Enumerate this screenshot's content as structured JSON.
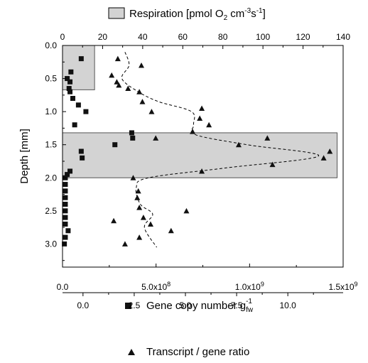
{
  "chart_data": {
    "type": "scatter",
    "legend": {
      "respiration_label": "Respiration [pmol O",
      "respiration_sub": "2",
      "respiration_unit_a": " cm",
      "respiration_sup_a": "-3",
      "respiration_unit_b": "s",
      "respiration_sup_b": "-1",
      "respiration_close": "]"
    },
    "ylabel": "Depth [mm]",
    "ylim": [
      3.35,
      0.0
    ],
    "y_ticks": [
      "0.0",
      "0.5",
      "1.0",
      "1.5",
      "2.0",
      "2.5",
      "3.0"
    ],
    "x_bottom": {
      "label": "Gene copy number g",
      "label_sub": "fw",
      "label_sup": "-1",
      "range": [
        0,
        1500000000
      ],
      "ticks": [
        {
          "value": 0,
          "label": "0.0"
        },
        {
          "value": 500000000,
          "label": "5.0x10"
        },
        {
          "value": 1000000000,
          "label": "1.0x10"
        },
        {
          "value": 1500000000,
          "label": "1.5x10"
        }
      ],
      "tick_exponents": [
        "",
        "8",
        "9",
        "9"
      ]
    },
    "x_top": {
      "range": [
        0,
        140
      ],
      "ticks": [
        "0",
        "20",
        "40",
        "60",
        "80",
        "100",
        "120",
        "140"
      ]
    },
    "x_ratio": {
      "label": "Transcript / gene ratio",
      "range": [
        -1.0,
        12.7
      ],
      "ticks": [
        "0.0",
        "2.5",
        "5.0",
        "7.5",
        "10.0"
      ],
      "tick_values": [
        0,
        2.5,
        5.0,
        7.5,
        10.0
      ]
    },
    "respiration_bars": [
      {
        "depth_from": 0.0,
        "depth_to": 0.67,
        "value": 16
      },
      {
        "depth_from": 1.32,
        "depth_to": 2.0,
        "value": 137
      }
    ],
    "gene_copy_series": {
      "name": "Gene copy number",
      "points": [
        [
          100000000,
          0.2
        ],
        [
          45000000,
          0.4
        ],
        [
          25000000,
          0.5
        ],
        [
          40000000,
          0.55
        ],
        [
          35000000,
          0.65
        ],
        [
          40000000,
          0.7
        ],
        [
          55000000,
          0.8
        ],
        [
          85000000,
          0.9
        ],
        [
          125000000,
          1.0
        ],
        [
          65000000,
          1.2
        ],
        [
          370000000,
          1.32
        ],
        [
          375000000,
          1.4
        ],
        [
          280000000,
          1.5
        ],
        [
          100000000,
          1.6
        ],
        [
          105000000,
          1.7
        ],
        [
          40000000,
          1.9
        ],
        [
          25000000,
          1.95
        ],
        [
          15000000,
          2.0
        ],
        [
          15000000,
          2.1
        ],
        [
          15000000,
          2.2
        ],
        [
          15000000,
          2.3
        ],
        [
          15000000,
          2.4
        ],
        [
          15000000,
          2.5
        ],
        [
          15000000,
          2.6
        ],
        [
          15000000,
          2.7
        ],
        [
          30000000,
          2.8
        ],
        [
          15000000,
          2.9
        ],
        [
          10000000,
          3.0
        ]
      ]
    },
    "ratio_series": {
      "name": "Transcript / gene ratio",
      "points": [
        [
          1.7,
          0.2
        ],
        [
          2.85,
          0.3
        ],
        [
          1.4,
          0.45
        ],
        [
          1.65,
          0.55
        ],
        [
          1.75,
          0.6
        ],
        [
          2.2,
          0.65
        ],
        [
          2.75,
          0.7
        ],
        [
          2.9,
          0.85
        ],
        [
          3.35,
          1.0
        ],
        [
          5.8,
          0.95
        ],
        [
          5.7,
          1.1
        ],
        [
          6.15,
          1.2
        ],
        [
          5.35,
          1.3
        ],
        [
          3.55,
          1.4
        ],
        [
          7.6,
          1.5
        ],
        [
          9.0,
          1.4
        ],
        [
          9.25,
          1.8
        ],
        [
          5.8,
          1.9
        ],
        [
          12.05,
          1.6
        ],
        [
          11.75,
          1.7
        ],
        [
          2.45,
          2.0
        ],
        [
          2.7,
          2.2
        ],
        [
          2.65,
          2.3
        ],
        [
          2.75,
          2.45
        ],
        [
          5.05,
          2.5
        ],
        [
          2.95,
          2.6
        ],
        [
          1.5,
          2.65
        ],
        [
          3.3,
          2.7
        ],
        [
          4.3,
          2.8
        ],
        [
          2.75,
          2.9
        ],
        [
          2.05,
          3.0
        ]
      ]
    },
    "fit_line": [
      [
        2.05,
        0.1
      ],
      [
        2.25,
        0.3
      ],
      [
        1.9,
        0.5
      ],
      [
        2.7,
        0.7
      ],
      [
        3.7,
        0.85
      ],
      [
        5.3,
        1.0
      ],
      [
        5.4,
        1.2
      ],
      [
        5.5,
        1.35
      ],
      [
        8.0,
        1.5
      ],
      [
        11.5,
        1.67
      ],
      [
        7.0,
        1.85
      ],
      [
        3.2,
        2.0
      ],
      [
        2.6,
        2.15
      ],
      [
        2.8,
        2.4
      ],
      [
        3.4,
        2.55
      ],
      [
        3.0,
        2.75
      ],
      [
        3.6,
        3.05
      ]
    ]
  }
}
